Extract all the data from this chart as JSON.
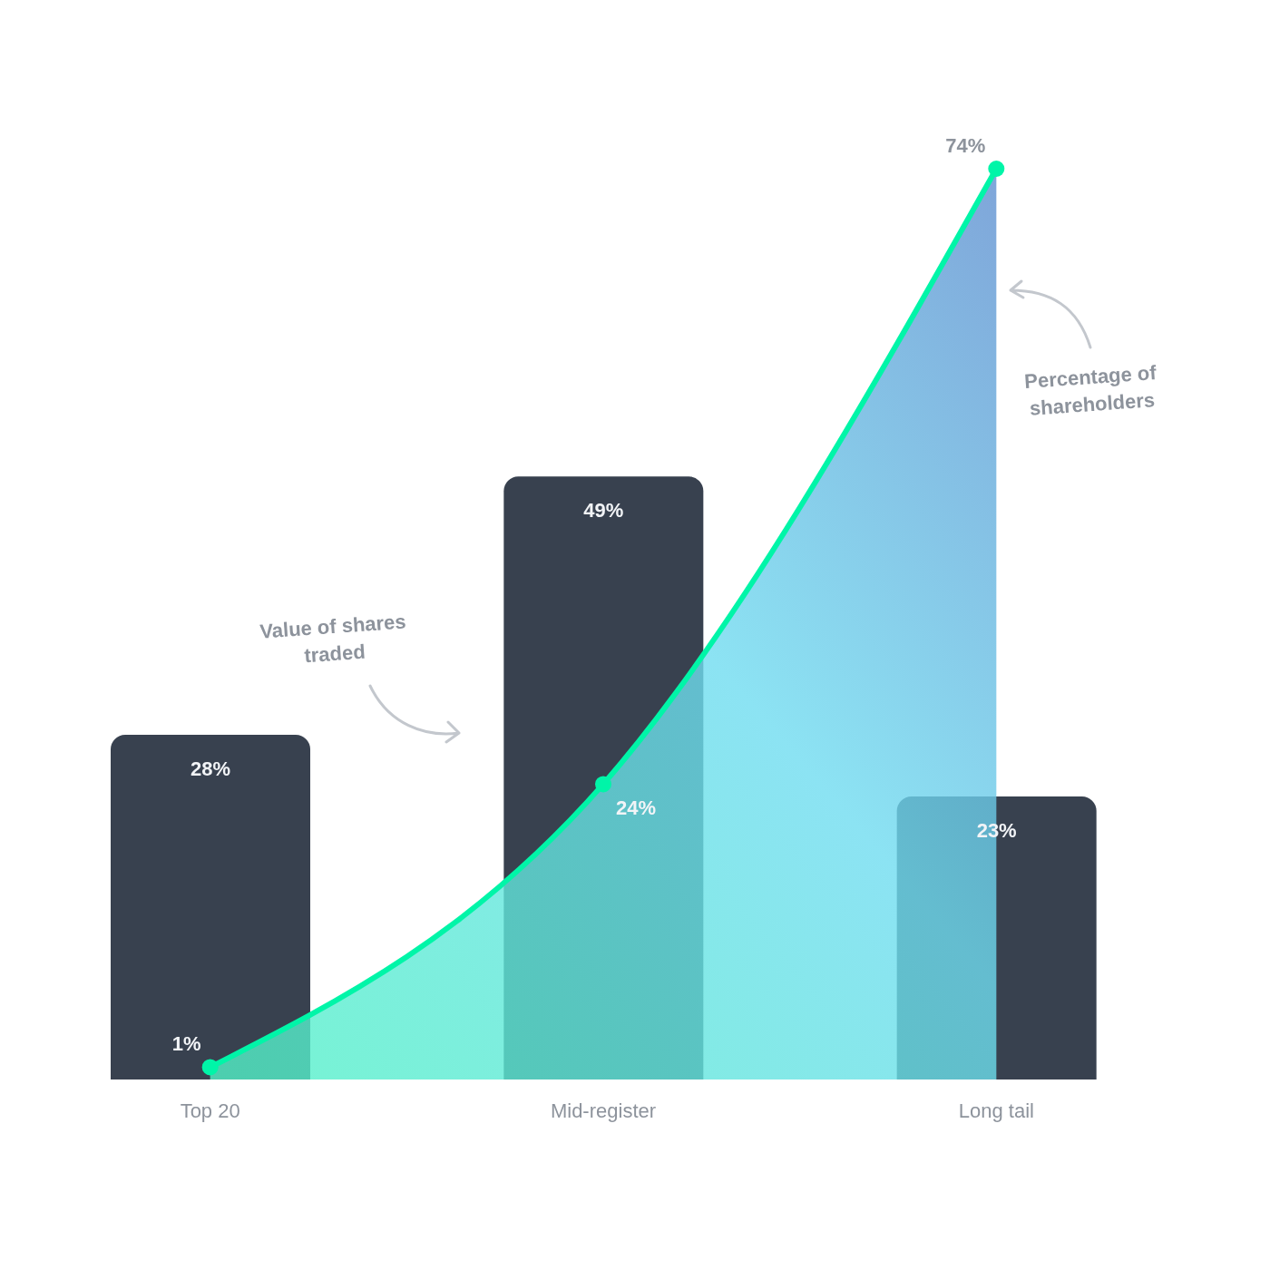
{
  "chart_data": {
    "type": "bar",
    "categories": [
      "Top 20",
      "Mid-register",
      "Long tail"
    ],
    "series": [
      {
        "color": "#38414f",
        "values": [
          28,
          49,
          23
        ],
        "value_labels": [
          "28%",
          "49%",
          "23%"
        ]
      },
      {
        "type": "area",
        "color": "#00f5a8",
        "values": [
          1,
          24,
          74
        ],
        "value_labels": [
          "1%",
          "24%",
          "74%"
        ]
      }
    ],
    "marker": "circle",
    "annotations": [
      "Value of shares traded",
      "Percentage of shareholders"
    ]
  }
}
